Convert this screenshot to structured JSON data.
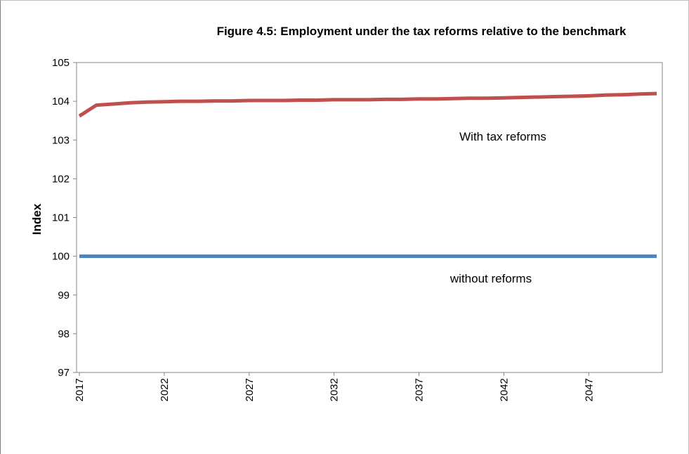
{
  "chart_data": {
    "type": "line",
    "title": "Figure 4.5: Employment under the tax reforms relative to the benchmark",
    "xlabel": "",
    "ylabel": "Index",
    "ylim": [
      97,
      105
    ],
    "yticks": [
      97,
      98,
      99,
      100,
      101,
      102,
      103,
      104,
      105
    ],
    "xlim": [
      2017,
      2051
    ],
    "xticks": [
      "2017",
      "2022",
      "2027",
      "2032",
      "2037",
      "2042",
      "2047"
    ],
    "grid": false,
    "annotations": [
      "With tax reforms",
      "without reforms"
    ],
    "series": [
      {
        "color": "#c0504d",
        "x": [
          2017,
          2018,
          2019,
          2020,
          2021,
          2022,
          2023,
          2024,
          2025,
          2026,
          2027,
          2028,
          2029,
          2030,
          2031,
          2032,
          2033,
          2034,
          2035,
          2036,
          2037,
          2038,
          2039,
          2040,
          2041,
          2042,
          2043,
          2044,
          2045,
          2046,
          2047,
          2048,
          2049,
          2050,
          2051
        ],
        "values": [
          103.62,
          103.9,
          103.93,
          103.96,
          103.98,
          103.99,
          104.0,
          104.0,
          104.01,
          104.01,
          104.02,
          104.02,
          104.02,
          104.03,
          104.03,
          104.04,
          104.04,
          104.04,
          104.05,
          104.05,
          104.06,
          104.06,
          104.07,
          104.08,
          104.08,
          104.09,
          104.1,
          104.11,
          104.12,
          104.13,
          104.14,
          104.16,
          104.17,
          104.19,
          104.2
        ]
      },
      {
        "color": "#4f81bd",
        "x": [
          2017,
          2051
        ],
        "values": [
          100,
          100
        ]
      }
    ]
  }
}
